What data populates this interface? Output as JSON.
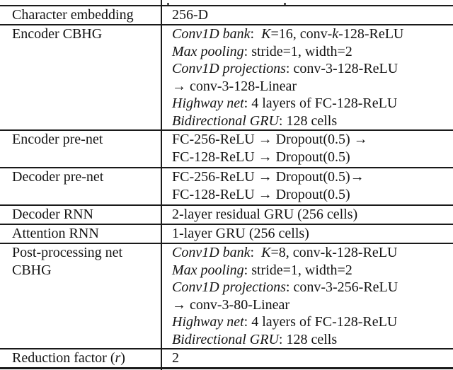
{
  "page": {
    "background": "#ffffff",
    "text_color": "#141414",
    "rule_color": "#1a1a1a"
  },
  "table": {
    "rows": [
      {
        "name": "character-embedding",
        "label_lines": [
          [
            {
              "text": "Character embedding"
            }
          ]
        ],
        "value_lines": [
          [
            {
              "text": "256-D"
            }
          ]
        ]
      },
      {
        "name": "encoder-cbhg",
        "label_lines": [
          [
            {
              "text": "Encoder CBHG"
            }
          ]
        ],
        "value_lines": [
          [
            {
              "text": "Conv1D bank",
              "italic": true
            },
            {
              "text": ":  "
            },
            {
              "text": "K",
              "italic": true
            },
            {
              "text": "=16, conv-"
            },
            {
              "text": "k",
              "italic": true
            },
            {
              "text": "-128-ReLU"
            }
          ],
          [
            {
              "text": "Max pooling",
              "italic": true
            },
            {
              "text": ": stride=1, width=2"
            }
          ],
          [
            {
              "text": "Conv1D projections",
              "italic": true
            },
            {
              "text": ": conv-3-128-ReLU"
            }
          ],
          [
            {
              "text": "→ conv-3-128-Linear"
            }
          ],
          [
            {
              "text": "Highway net",
              "italic": true
            },
            {
              "text": ": 4 layers of FC-128-ReLU"
            }
          ],
          [
            {
              "text": "Bidirectional GRU",
              "italic": true
            },
            {
              "text": ": 128 cells"
            }
          ]
        ]
      },
      {
        "name": "encoder-pre-net",
        "label_lines": [
          [
            {
              "text": "Encoder pre-net"
            }
          ]
        ],
        "value_lines": [
          [
            {
              "text": "FC-256-ReLU → Dropout(0.5) →"
            }
          ],
          [
            {
              "text": "FC-128-ReLU → Dropout(0.5)"
            }
          ]
        ]
      },
      {
        "name": "decoder-pre-net",
        "label_lines": [
          [
            {
              "text": "Decoder pre-net"
            }
          ]
        ],
        "value_lines": [
          [
            {
              "text": "FC-256-ReLU → Dropout(0.5)→"
            }
          ],
          [
            {
              "text": "FC-128-ReLU → Dropout(0.5)"
            }
          ]
        ]
      },
      {
        "name": "decoder-rnn",
        "label_lines": [
          [
            {
              "text": "Decoder RNN"
            }
          ]
        ],
        "value_lines": [
          [
            {
              "text": "2-layer residual GRU (256 cells)"
            }
          ]
        ]
      },
      {
        "name": "attention-rnn",
        "label_lines": [
          [
            {
              "text": "Attention RNN"
            }
          ]
        ],
        "value_lines": [
          [
            {
              "text": "1-layer GRU (256 cells)"
            }
          ]
        ]
      },
      {
        "name": "post-processing-net-cbhg",
        "label_lines": [
          [
            {
              "text": "Post-processing net"
            }
          ],
          [
            {
              "text": "CBHG"
            }
          ]
        ],
        "value_lines": [
          [
            {
              "text": "Conv1D bank",
              "italic": true
            },
            {
              "text": ":  "
            },
            {
              "text": "K",
              "italic": true
            },
            {
              "text": "=8, conv-k-128-ReLU"
            }
          ],
          [
            {
              "text": "Max pooling",
              "italic": true
            },
            {
              "text": ": stride=1, width=2"
            }
          ],
          [
            {
              "text": "Conv1D projections",
              "italic": true
            },
            {
              "text": ": conv-3-256-ReLU"
            }
          ],
          [
            {
              "text": "→ conv-3-80-Linear"
            }
          ],
          [
            {
              "text": "Highway net",
              "italic": true
            },
            {
              "text": ": 4 layers of FC-128-ReLU"
            }
          ],
          [
            {
              "text": "Bidirectional GRU",
              "italic": true
            },
            {
              "text": ": 128 cells"
            }
          ]
        ]
      },
      {
        "name": "reduction-factor",
        "label_lines": [
          [
            {
              "text": "Reduction factor ("
            },
            {
              "text": "r",
              "italic": true
            },
            {
              "text": ")"
            }
          ]
        ],
        "value_lines": [
          [
            {
              "text": "2"
            }
          ]
        ]
      }
    ]
  }
}
